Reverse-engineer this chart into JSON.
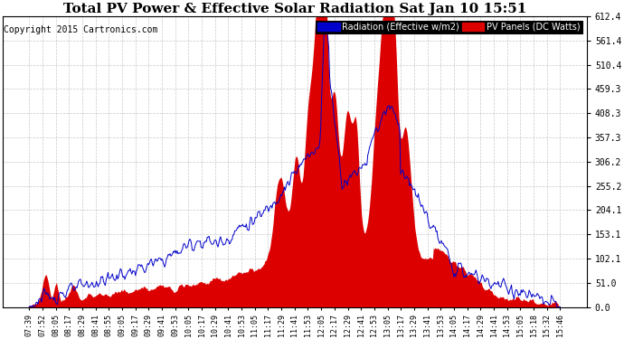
{
  "title": "Total PV Power & Effective Solar Radiation Sat Jan 10 15:51",
  "copyright": "Copyright 2015 Cartronics.com",
  "legend_blue": "Radiation (Effective w/m2)",
  "legend_red": "PV Panels (DC Watts)",
  "ylabel_right_ticks": [
    0.0,
    51.0,
    102.1,
    153.1,
    204.1,
    255.2,
    306.2,
    357.3,
    408.3,
    459.3,
    510.4,
    561.4,
    612.4
  ],
  "ymax": 612.4,
  "ymin": 0.0,
  "bg_color": "#ffffff",
  "grid_color": "#bbbbbb",
  "blue_color": "#0000cc",
  "red_color": "#dd0000",
  "title_fontsize": 11,
  "copyright_fontsize": 7,
  "xtick_labels": [
    "07:39",
    "07:52",
    "08:05",
    "08:17",
    "08:29",
    "08:41",
    "08:55",
    "09:05",
    "09:17",
    "09:29",
    "09:41",
    "09:53",
    "10:05",
    "10:17",
    "10:29",
    "10:41",
    "10:53",
    "11:05",
    "11:17",
    "11:29",
    "11:41",
    "11:53",
    "12:05",
    "12:17",
    "12:29",
    "12:41",
    "12:53",
    "13:05",
    "13:17",
    "13:29",
    "13:41",
    "13:53",
    "14:05",
    "14:17",
    "14:29",
    "14:41",
    "14:53",
    "15:05",
    "15:18",
    "15:32",
    "15:46"
  ]
}
